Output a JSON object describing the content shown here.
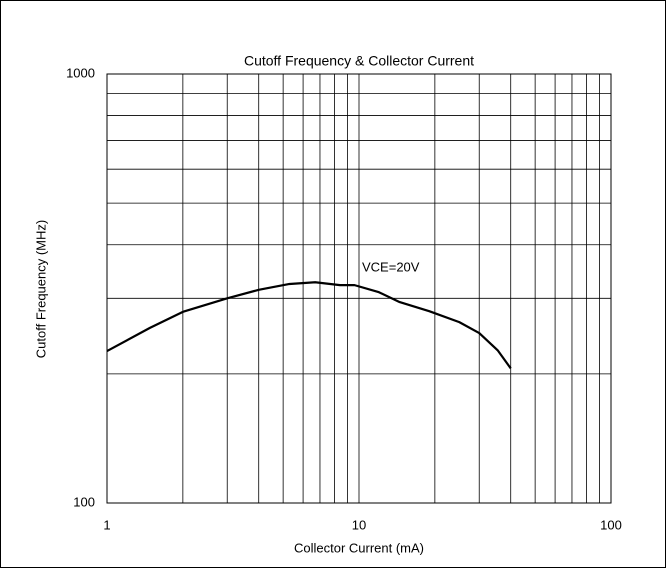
{
  "chart_data": {
    "type": "line",
    "title": "Cutoff Frequency & Collector Current",
    "x_label": "Collector Current (mA)",
    "y_label": "Cutoff Frequency (MHz)",
    "annotation": "VCE=20V",
    "x": [
      1,
      1.48,
      2,
      3,
      4,
      5.3,
      6.7,
      8.4,
      9.6,
      12,
      14.5,
      19,
      25,
      30,
      35.5,
      40
    ],
    "series": [
      {
        "name": "VCE=20V",
        "color": "#000000",
        "values": [
          226,
          256,
          279,
          300,
          314,
          324,
          327,
          322,
          322,
          310,
          294,
          280,
          264,
          249,
          227,
          206
        ]
      }
    ],
    "xlim": [
      1,
      100
    ],
    "ylim": [
      100,
      1000
    ],
    "xticks": [
      1,
      10,
      100
    ],
    "yticks": [
      100,
      1000
    ],
    "xscale": "log",
    "yscale": "log",
    "grid": true
  }
}
